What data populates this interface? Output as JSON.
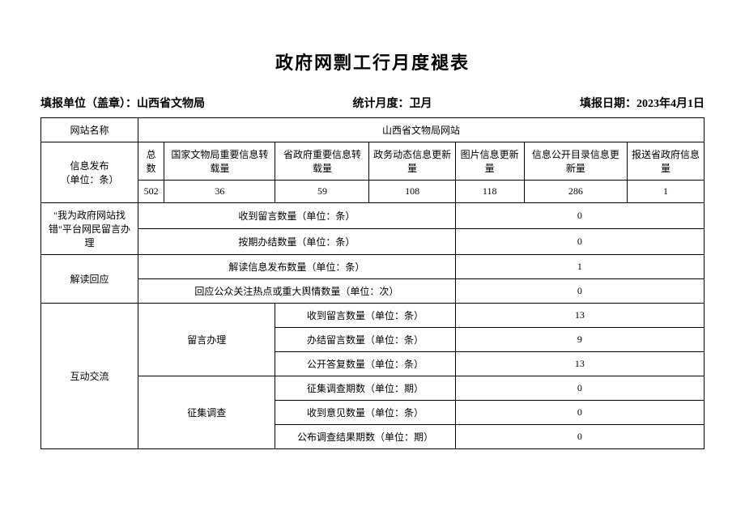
{
  "title": "政府网剽工行月度褪表",
  "header": {
    "unit_label": "填报单位（盖章）：",
    "unit_value": "山西省文物局",
    "month_label": "统计月度：",
    "month_value": "卫月",
    "date_label": "填报日期：",
    "date_value": "2023年4月1日"
  },
  "row_site_name": {
    "label": "网站名称",
    "value": "山西省文物局网站"
  },
  "row_info_publish": {
    "label": "信息发布",
    "unit": "（单位：条）",
    "cols": {
      "total": "总数",
      "national": "国家文物局重要信息转载量",
      "province": "省政府重要信息转载量",
      "dynamic": "政务动态信息更新量",
      "image": "图片信息更新量",
      "catalog": "信息公开目录信息更新量",
      "report": "报送省政府信息量"
    },
    "vals": {
      "total": "502",
      "national": "36",
      "province": "59",
      "dynamic": "108",
      "image": "118",
      "catalog": "286",
      "report": "1"
    }
  },
  "row_error_platform": {
    "label": "\"我为政府网站找错\"平台网民留言办理",
    "received_label": "收到留言数量（单位：条）",
    "received_value": "0",
    "closed_label": "按期办结数量（单位：条）",
    "closed_value": "0"
  },
  "row_interpret": {
    "label": "解读回应",
    "publish_label": "解读信息发布数量（单位：条）",
    "publish_value": "1",
    "respond_label": "回应公众关注热点或重大舆情数量（单位：次）",
    "respond_value": "0"
  },
  "row_interact": {
    "label": "互动交流",
    "message_handle": {
      "label": "留言办理",
      "received_label": "收到留言数量（单位：条）",
      "received_value": "13",
      "handled_label": "办结留言数量（单位：条）",
      "handled_value": "9",
      "public_reply_label": "公开答复数量（单位：条）",
      "public_reply_value": "13"
    },
    "survey": {
      "label": "征集调查",
      "survey_count_label": "征集调查期数（单位：期）",
      "survey_count_value": "0",
      "opinion_label": "收到意见数量（单位：条）",
      "opinion_value": "0",
      "result_label": "公布调查结果期数（单位：期）",
      "result_value": "0"
    }
  }
}
